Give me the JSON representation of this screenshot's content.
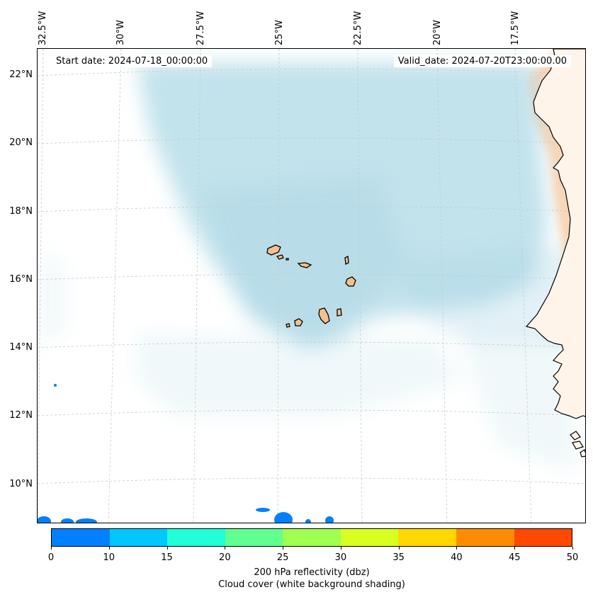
{
  "start_date": "Start date: 2024-07-18_00:00:00",
  "valid_date": "Valid_date: 2024-07-20T23:00:00.00",
  "lon_labels": [
    "32.5°W",
    "30°W",
    "27.5°W",
    "25°W",
    "22.5°W",
    "20°W",
    "17.5°W"
  ],
  "lat_labels": [
    "22°N",
    "20°N",
    "18°N",
    "16°N",
    "14°N",
    "12°N",
    "10°N"
  ],
  "colorbar": {
    "ticks": [
      "0",
      "10",
      "15",
      "20",
      "25",
      "30",
      "35",
      "40",
      "45",
      "50"
    ],
    "colors": [
      "#0080ff",
      "#00c8ff",
      "#20ffd8",
      "#60ff90",
      "#a0ff50",
      "#d8ff20",
      "#ffd800",
      "#ff8c00",
      "#ff4800"
    ],
    "label_line1": "200 hPa reflectivity (dbz)",
    "label_line2": "Cloud cover (white background shading)"
  },
  "colors": {
    "cloud": "#add8e6",
    "land_fill": "#f5c08a",
    "continent_shade": "#f8b27a",
    "coastline": "#000000",
    "gridline": "#c8c8c8"
  }
}
